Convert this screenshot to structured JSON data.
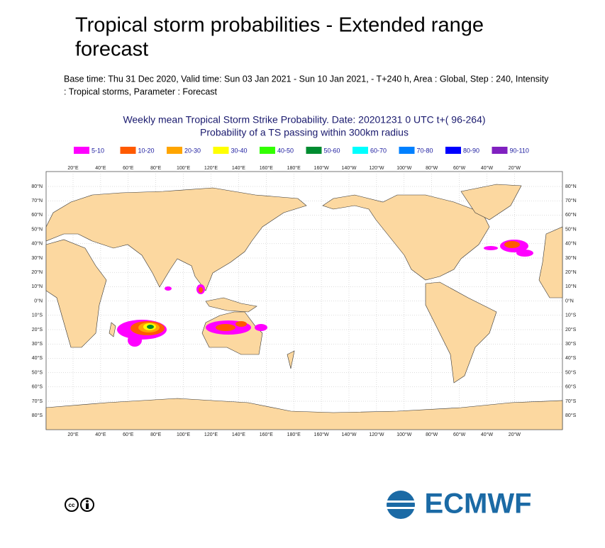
{
  "header": {
    "title_lines": [
      "Tropical storm probabilities - Extended range",
      "forecast"
    ],
    "subtitle_lines": [
      "Base time: Thu 31 Dec 2020, Valid time: Sun 03 Jan 2021 - Sun 10 Jan 2021, - T+240 h, Area : Global, Step : 240, Intensity",
      ": Tropical storms, Parameter : Forecast"
    ]
  },
  "map": {
    "title_lines": [
      "Weekly mean Tropical Storm Strike Probability. Date: 20201231  0 UTC   t+( 96-264)",
      "Probability of a TS passing within  300km radius"
    ],
    "legend": [
      {
        "label": "5-10",
        "color": "#ff00ff"
      },
      {
        "label": "10-20",
        "color": "#ff5a00"
      },
      {
        "label": "20-30",
        "color": "#ffa500"
      },
      {
        "label": "30-40",
        "color": "#ffff00"
      },
      {
        "label": "40-50",
        "color": "#32ff00"
      },
      {
        "label": "50-60",
        "color": "#008c30"
      },
      {
        "label": "60-70",
        "color": "#00ffff"
      },
      {
        "label": "70-80",
        "color": "#0080ff"
      },
      {
        "label": "80-90",
        "color": "#0000ff"
      },
      {
        "label": "90-110",
        "color": "#8020c0"
      }
    ],
    "lon_labels": [
      "20°E",
      "40°E",
      "60°E",
      "80°E",
      "100°E",
      "120°E",
      "140°E",
      "160°E",
      "180°E",
      "160°W",
      "140°W",
      "120°W",
      "100°W",
      "80°W",
      "60°W",
      "40°W",
      "20°W"
    ],
    "lat_labels": [
      "80°N",
      "70°N",
      "60°N",
      "50°N",
      "40°N",
      "30°N",
      "20°N",
      "10°N",
      "0°N",
      "10°S",
      "20°S",
      "30°S",
      "40°S",
      "50°S",
      "60°S",
      "70°S",
      "80°S"
    ]
  },
  "footer": {
    "logo_text": "ECMWF"
  }
}
